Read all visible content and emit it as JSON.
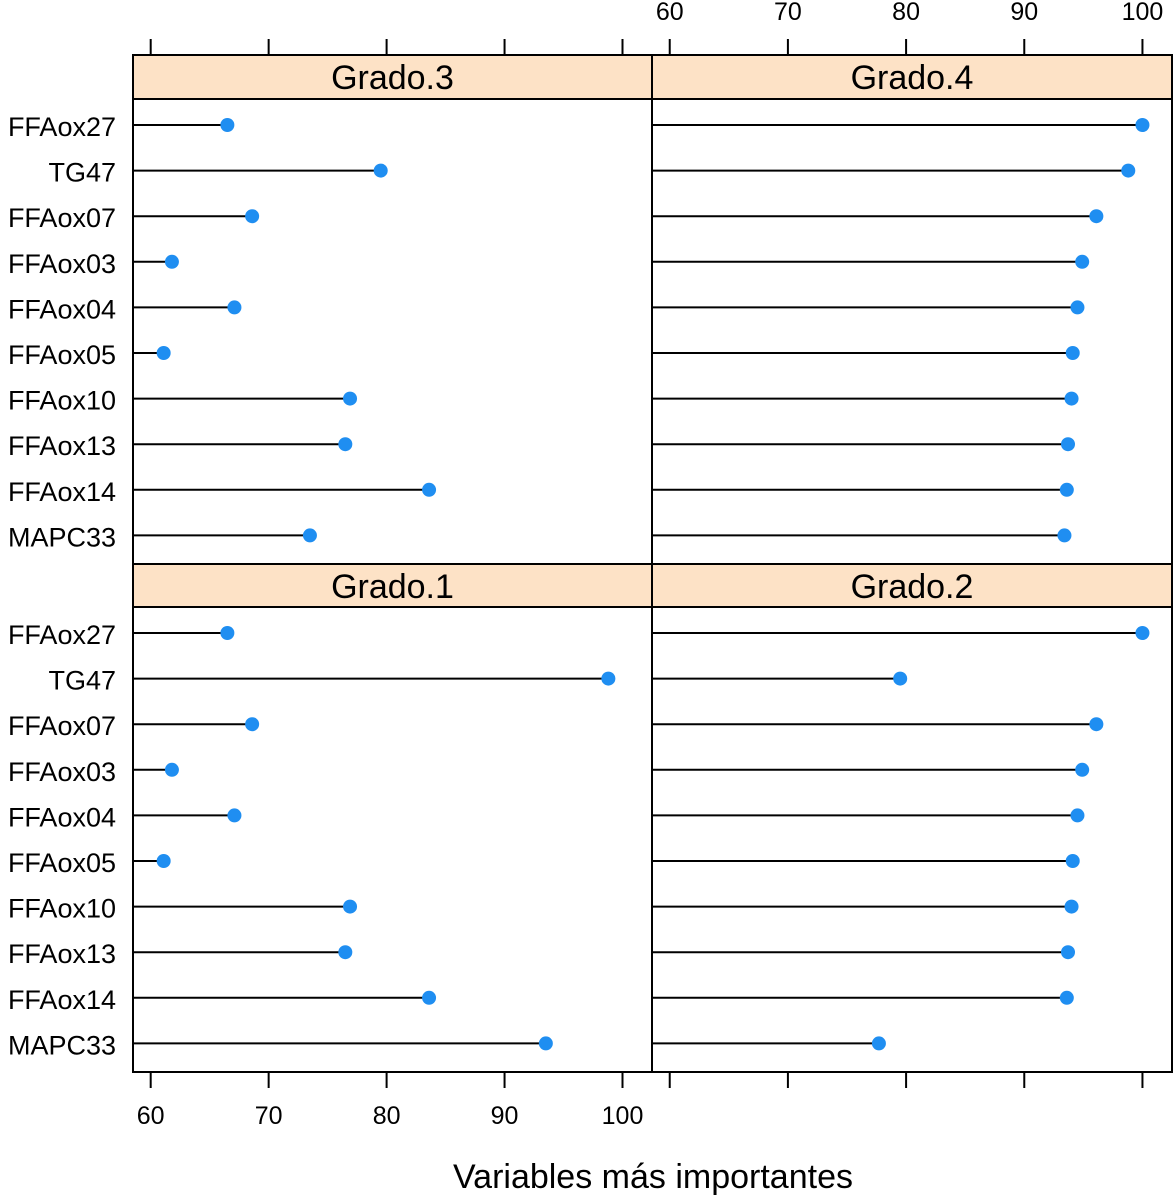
{
  "chart_data": {
    "type": "dot",
    "xlabel": "Variables más importantes",
    "ylabel": "",
    "xlim": [
      58.5,
      102.5
    ],
    "xticks": [
      60,
      70,
      80,
      90,
      100
    ],
    "categories": [
      "FFAox27",
      "TG47",
      "FFAox07",
      "FFAox03",
      "FFAox04",
      "FFAox05",
      "FFAox10",
      "FFAox13",
      "FFAox14",
      "MAPC33"
    ],
    "grid": false,
    "legend": "none",
    "colors": {
      "point": "#1f8ef1",
      "line": "#000000",
      "strip": "#fde2c6",
      "border": "#000000"
    },
    "panels": [
      {
        "name": "Grado.3",
        "values": [
          66.5,
          79.5,
          68.6,
          61.8,
          67.1,
          61.1,
          76.9,
          76.5,
          83.6,
          73.5
        ]
      },
      {
        "name": "Grado.4",
        "values": [
          100.0,
          98.8,
          96.1,
          94.9,
          94.5,
          94.1,
          94.0,
          93.7,
          93.6,
          93.4
        ]
      },
      {
        "name": "Grado.1",
        "values": [
          66.5,
          98.8,
          68.6,
          61.8,
          67.1,
          61.1,
          76.9,
          76.5,
          83.6,
          93.5
        ]
      },
      {
        "name": "Grado.2",
        "values": [
          100.0,
          79.5,
          96.1,
          94.9,
          94.5,
          94.1,
          94.0,
          93.7,
          93.6,
          77.7
        ]
      }
    ]
  }
}
